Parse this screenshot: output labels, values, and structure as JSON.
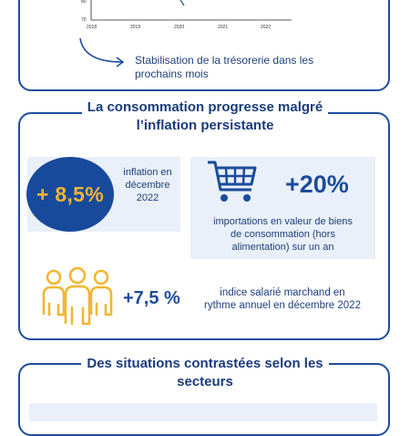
{
  "top_panel": {
    "chart": {
      "y_tick_top": "80",
      "y_tick_bottom": "70",
      "x_ticks": [
        "2018",
        "2019",
        "2020",
        "2021",
        "2022"
      ]
    },
    "annotation": [
      "Stabilisation de la trésorerie dans les",
      "prochains mois"
    ]
  },
  "consumption_panel": {
    "title": [
      "La consommation progresse malgré",
      "l’inflation persistante"
    ],
    "inflation": {
      "value": "+ 8,5%",
      "label": [
        "inflation en",
        "décembre",
        "2022"
      ]
    },
    "imports": {
      "value": "+20%",
      "label": [
        "importations en valeur de biens",
        "de consommation  (hors",
        "alimentation) sur un an"
      ]
    },
    "salary": {
      "value": "+7,5 %",
      "label": [
        "indice salarié marchand en",
        "rythme annuel en décembre 2022"
      ]
    }
  },
  "sectors_panel": {
    "title": [
      "Des situations contrastées selon les",
      "secteurs"
    ]
  },
  "colors": {
    "navy": "#1d4e9e",
    "gold": "#f2b632",
    "light_blue": "#e9f0fa"
  },
  "icons": [
    "curved-arrow-icon",
    "shopping-cart-icon",
    "people-group-icon"
  ]
}
